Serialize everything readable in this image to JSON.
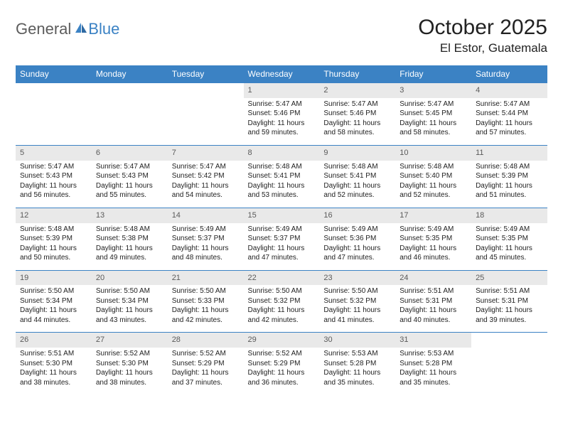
{
  "logo": {
    "general": "General",
    "blue": "Blue"
  },
  "title": "October 2025",
  "location": "El Estor, Guatemala",
  "colors": {
    "accent": "#3b82c4",
    "daynum_bg": "#e9e9e9",
    "text": "#222222",
    "logo_gray": "#5c5c5c"
  },
  "daysOfWeek": [
    "Sunday",
    "Monday",
    "Tuesday",
    "Wednesday",
    "Thursday",
    "Friday",
    "Saturday"
  ],
  "weeks": [
    [
      null,
      null,
      null,
      {
        "n": "1",
        "sr": "Sunrise: 5:47 AM",
        "ss": "Sunset: 5:46 PM",
        "dl": "Daylight: 11 hours and 59 minutes."
      },
      {
        "n": "2",
        "sr": "Sunrise: 5:47 AM",
        "ss": "Sunset: 5:46 PM",
        "dl": "Daylight: 11 hours and 58 minutes."
      },
      {
        "n": "3",
        "sr": "Sunrise: 5:47 AM",
        "ss": "Sunset: 5:45 PM",
        "dl": "Daylight: 11 hours and 58 minutes."
      },
      {
        "n": "4",
        "sr": "Sunrise: 5:47 AM",
        "ss": "Sunset: 5:44 PM",
        "dl": "Daylight: 11 hours and 57 minutes."
      }
    ],
    [
      {
        "n": "5",
        "sr": "Sunrise: 5:47 AM",
        "ss": "Sunset: 5:43 PM",
        "dl": "Daylight: 11 hours and 56 minutes."
      },
      {
        "n": "6",
        "sr": "Sunrise: 5:47 AM",
        "ss": "Sunset: 5:43 PM",
        "dl": "Daylight: 11 hours and 55 minutes."
      },
      {
        "n": "7",
        "sr": "Sunrise: 5:47 AM",
        "ss": "Sunset: 5:42 PM",
        "dl": "Daylight: 11 hours and 54 minutes."
      },
      {
        "n": "8",
        "sr": "Sunrise: 5:48 AM",
        "ss": "Sunset: 5:41 PM",
        "dl": "Daylight: 11 hours and 53 minutes."
      },
      {
        "n": "9",
        "sr": "Sunrise: 5:48 AM",
        "ss": "Sunset: 5:41 PM",
        "dl": "Daylight: 11 hours and 52 minutes."
      },
      {
        "n": "10",
        "sr": "Sunrise: 5:48 AM",
        "ss": "Sunset: 5:40 PM",
        "dl": "Daylight: 11 hours and 52 minutes."
      },
      {
        "n": "11",
        "sr": "Sunrise: 5:48 AM",
        "ss": "Sunset: 5:39 PM",
        "dl": "Daylight: 11 hours and 51 minutes."
      }
    ],
    [
      {
        "n": "12",
        "sr": "Sunrise: 5:48 AM",
        "ss": "Sunset: 5:39 PM",
        "dl": "Daylight: 11 hours and 50 minutes."
      },
      {
        "n": "13",
        "sr": "Sunrise: 5:48 AM",
        "ss": "Sunset: 5:38 PM",
        "dl": "Daylight: 11 hours and 49 minutes."
      },
      {
        "n": "14",
        "sr": "Sunrise: 5:49 AM",
        "ss": "Sunset: 5:37 PM",
        "dl": "Daylight: 11 hours and 48 minutes."
      },
      {
        "n": "15",
        "sr": "Sunrise: 5:49 AM",
        "ss": "Sunset: 5:37 PM",
        "dl": "Daylight: 11 hours and 47 minutes."
      },
      {
        "n": "16",
        "sr": "Sunrise: 5:49 AM",
        "ss": "Sunset: 5:36 PM",
        "dl": "Daylight: 11 hours and 47 minutes."
      },
      {
        "n": "17",
        "sr": "Sunrise: 5:49 AM",
        "ss": "Sunset: 5:35 PM",
        "dl": "Daylight: 11 hours and 46 minutes."
      },
      {
        "n": "18",
        "sr": "Sunrise: 5:49 AM",
        "ss": "Sunset: 5:35 PM",
        "dl": "Daylight: 11 hours and 45 minutes."
      }
    ],
    [
      {
        "n": "19",
        "sr": "Sunrise: 5:50 AM",
        "ss": "Sunset: 5:34 PM",
        "dl": "Daylight: 11 hours and 44 minutes."
      },
      {
        "n": "20",
        "sr": "Sunrise: 5:50 AM",
        "ss": "Sunset: 5:34 PM",
        "dl": "Daylight: 11 hours and 43 minutes."
      },
      {
        "n": "21",
        "sr": "Sunrise: 5:50 AM",
        "ss": "Sunset: 5:33 PM",
        "dl": "Daylight: 11 hours and 42 minutes."
      },
      {
        "n": "22",
        "sr": "Sunrise: 5:50 AM",
        "ss": "Sunset: 5:32 PM",
        "dl": "Daylight: 11 hours and 42 minutes."
      },
      {
        "n": "23",
        "sr": "Sunrise: 5:50 AM",
        "ss": "Sunset: 5:32 PM",
        "dl": "Daylight: 11 hours and 41 minutes."
      },
      {
        "n": "24",
        "sr": "Sunrise: 5:51 AM",
        "ss": "Sunset: 5:31 PM",
        "dl": "Daylight: 11 hours and 40 minutes."
      },
      {
        "n": "25",
        "sr": "Sunrise: 5:51 AM",
        "ss": "Sunset: 5:31 PM",
        "dl": "Daylight: 11 hours and 39 minutes."
      }
    ],
    [
      {
        "n": "26",
        "sr": "Sunrise: 5:51 AM",
        "ss": "Sunset: 5:30 PM",
        "dl": "Daylight: 11 hours and 38 minutes."
      },
      {
        "n": "27",
        "sr": "Sunrise: 5:52 AM",
        "ss": "Sunset: 5:30 PM",
        "dl": "Daylight: 11 hours and 38 minutes."
      },
      {
        "n": "28",
        "sr": "Sunrise: 5:52 AM",
        "ss": "Sunset: 5:29 PM",
        "dl": "Daylight: 11 hours and 37 minutes."
      },
      {
        "n": "29",
        "sr": "Sunrise: 5:52 AM",
        "ss": "Sunset: 5:29 PM",
        "dl": "Daylight: 11 hours and 36 minutes."
      },
      {
        "n": "30",
        "sr": "Sunrise: 5:53 AM",
        "ss": "Sunset: 5:28 PM",
        "dl": "Daylight: 11 hours and 35 minutes."
      },
      {
        "n": "31",
        "sr": "Sunrise: 5:53 AM",
        "ss": "Sunset: 5:28 PM",
        "dl": "Daylight: 11 hours and 35 minutes."
      },
      null
    ]
  ]
}
